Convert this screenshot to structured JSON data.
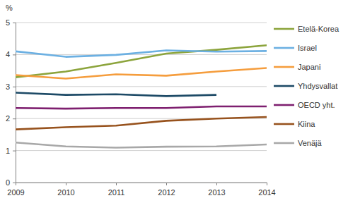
{
  "chart_data": {
    "type": "line",
    "ylabel": "%",
    "x": [
      2009,
      2010,
      2011,
      2012,
      2013,
      2014
    ],
    "series": [
      {
        "name": "Etelä-Korea",
        "color": "#8ca43c",
        "values": [
          3.29,
          3.47,
          3.74,
          4.03,
          4.15,
          4.29
        ]
      },
      {
        "name": "Israel",
        "color": "#6cb0e2",
        "values": [
          4.1,
          3.93,
          3.99,
          4.13,
          4.09,
          4.11
        ]
      },
      {
        "name": "Japani",
        "color": "#f59d3d",
        "values": [
          3.36,
          3.25,
          3.38,
          3.34,
          3.47,
          3.58
        ]
      },
      {
        "name": "Yhdysvallat",
        "color": "#1d4a66",
        "values": [
          2.81,
          2.74,
          2.76,
          2.7,
          2.74,
          null
        ]
      },
      {
        "name": "OECD yht.",
        "color": "#7e1f6f",
        "values": [
          2.33,
          2.31,
          2.33,
          2.33,
          2.38,
          2.38
        ]
      },
      {
        "name": "Kiina",
        "color": "#97521d",
        "values": [
          1.66,
          1.73,
          1.78,
          1.93,
          2.0,
          2.05
        ]
      },
      {
        "name": "Venäjä",
        "color": "#a8a8a8",
        "values": [
          1.25,
          1.13,
          1.09,
          1.12,
          1.13,
          1.19
        ]
      }
    ],
    "xlim": [
      2009,
      2014
    ],
    "xticks": [
      2009,
      2010,
      2011,
      2012,
      2013,
      2014
    ],
    "ylim": [
      0,
      5
    ],
    "yticks": [
      0,
      1,
      2,
      3,
      4,
      5
    ],
    "grid": true,
    "legend": "right"
  }
}
